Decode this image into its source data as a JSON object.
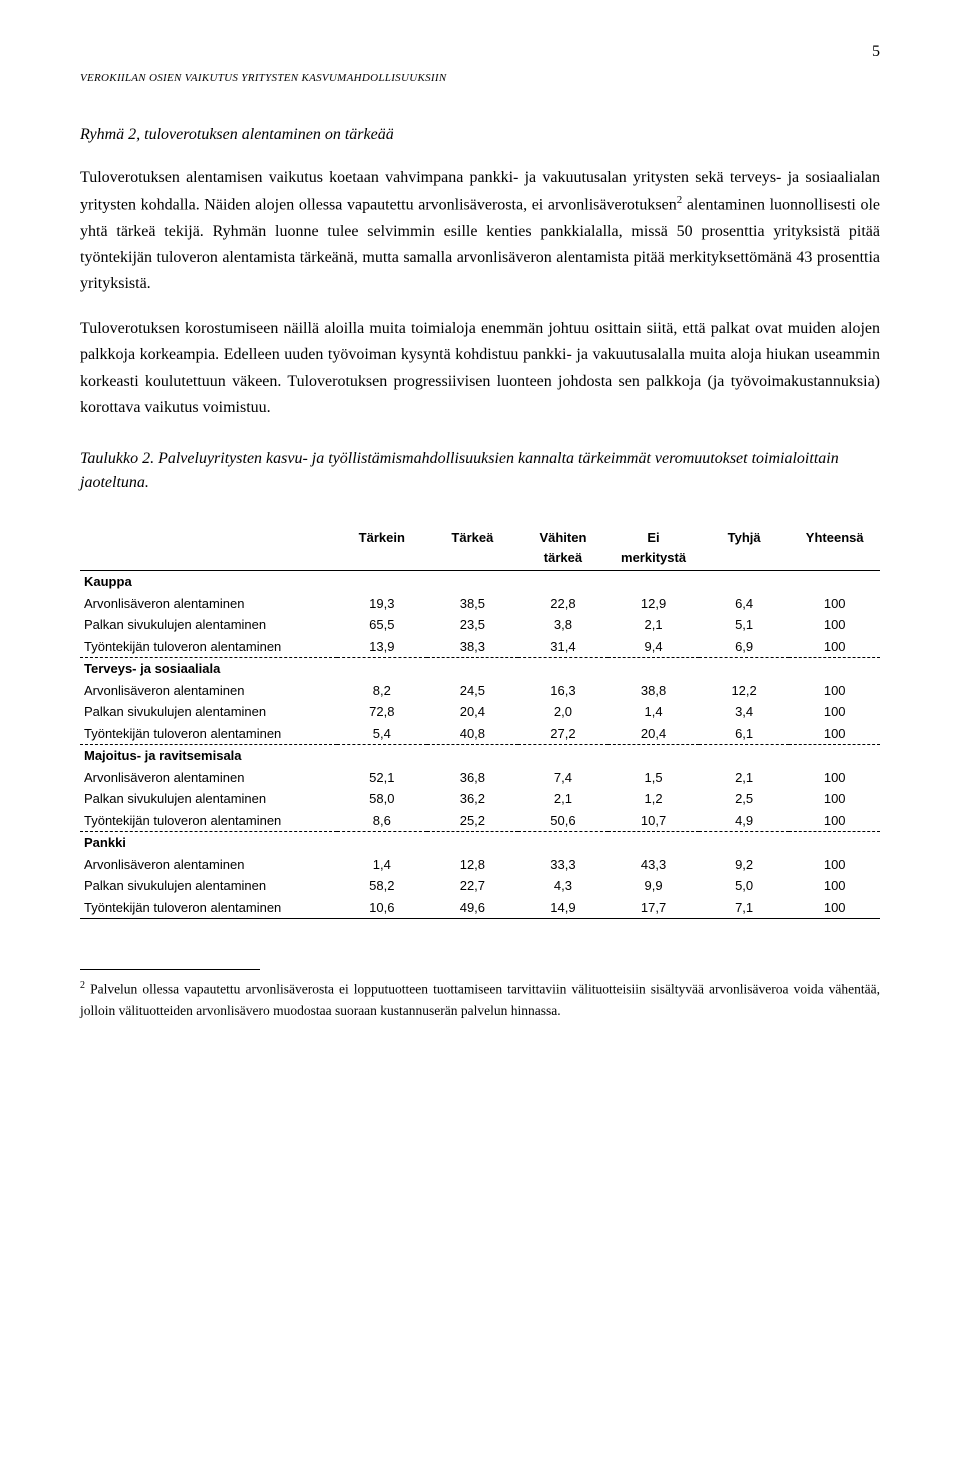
{
  "page_number": "5",
  "running_header": "VEROKIILAN OSIEN VAIKUTUS YRITYSTEN KASVUMAHDOLLISUUKSIIN",
  "section_heading": "Ryhmä 2, tuloverotuksen alentaminen on tärkeää",
  "para1_a": "Tuloverotuksen alentamisen vaikutus koetaan vahvimpana pankki- ja vakuutusalan yritysten sekä terveys- ja sosiaalialan yritysten kohdalla. Näiden alojen ollessa vapautettu arvonlisäverosta, ei arvonlisäverotuksen",
  "para1_sup": "2",
  "para1_b": " alentaminen luonnollisesti ole yhtä tärkeä tekijä. Ryhmän luonne tulee selvimmin esille kenties pankkialalla, missä 50 prosenttia yrityksistä pitää työntekijän tuloveron alentamista tärkeänä, mutta samalla arvonlisäveron alentamista pitää merkityksettömänä 43 prosenttia yrityksistä.",
  "para2": "Tuloverotuksen korostumiseen näillä aloilla muita toimialoja enemmän johtuu osittain siitä, että palkat ovat muiden alojen palkkoja korkeampia. Edelleen uuden työvoiman kysyntä kohdistuu pankki- ja vakuutusalalla muita aloja hiukan useammin korkeasti koulutettuun väkeen. Tuloverotuksen progressiivisen luonteen johdosta sen palkkoja (ja työvoimakustannuksia) korottava vaikutus voimistuu.",
  "table_caption": "Taulukko 2. Palveluyritysten kasvu- ja työllistämismahdollisuuksien kannalta tärkeimmät veromuutokset toimialoittain jaoteltuna.",
  "columns": [
    {
      "l1": "",
      "l2": ""
    },
    {
      "l1": "Tärkein",
      "l2": ""
    },
    {
      "l1": "Tärkeä",
      "l2": ""
    },
    {
      "l1": "Vähiten",
      "l2": "tärkeä"
    },
    {
      "l1": "Ei",
      "l2": "merkitystä"
    },
    {
      "l1": "Tyhjä",
      "l2": ""
    },
    {
      "l1": "Yhteensä",
      "l2": ""
    }
  ],
  "groups": [
    {
      "name": "Kauppa",
      "rows": [
        {
          "label": "Arvonlisäveron alentaminen",
          "v": [
            "19,3",
            "38,5",
            "22,8",
            "12,9",
            "6,4",
            "100"
          ]
        },
        {
          "label": "Palkan sivukulujen alentaminen",
          "v": [
            "65,5",
            "23,5",
            "3,8",
            "2,1",
            "5,1",
            "100"
          ]
        },
        {
          "label": "Työntekijän tuloveron alentaminen",
          "v": [
            "13,9",
            "38,3",
            "31,4",
            "9,4",
            "6,9",
            "100"
          ]
        }
      ]
    },
    {
      "name": "Terveys- ja sosiaaliala",
      "rows": [
        {
          "label": "Arvonlisäveron alentaminen",
          "v": [
            "8,2",
            "24,5",
            "16,3",
            "38,8",
            "12,2",
            "100"
          ]
        },
        {
          "label": "Palkan sivukulujen alentaminen",
          "v": [
            "72,8",
            "20,4",
            "2,0",
            "1,4",
            "3,4",
            "100"
          ]
        },
        {
          "label": "Työntekijän tuloveron alentaminen",
          "v": [
            "5,4",
            "40,8",
            "27,2",
            "20,4",
            "6,1",
            "100"
          ]
        }
      ]
    },
    {
      "name": "Majoitus- ja ravitsemisala",
      "rows": [
        {
          "label": "Arvonlisäveron alentaminen",
          "v": [
            "52,1",
            "36,8",
            "7,4",
            "1,5",
            "2,1",
            "100"
          ]
        },
        {
          "label": "Palkan sivukulujen alentaminen",
          "v": [
            "58,0",
            "36,2",
            "2,1",
            "1,2",
            "2,5",
            "100"
          ]
        },
        {
          "label": "Työntekijän tuloveron alentaminen",
          "v": [
            "8,6",
            "25,2",
            "50,6",
            "10,7",
            "4,9",
            "100"
          ]
        }
      ]
    },
    {
      "name": "Pankki",
      "rows": [
        {
          "label": "Arvonlisäveron alentaminen",
          "v": [
            "1,4",
            "12,8",
            "33,3",
            "43,3",
            "9,2",
            "100"
          ]
        },
        {
          "label": "Palkan sivukulujen alentaminen",
          "v": [
            "58,2",
            "22,7",
            "4,3",
            "9,9",
            "5,0",
            "100"
          ]
        },
        {
          "label": "Työntekijän tuloveron alentaminen",
          "v": [
            "10,6",
            "49,6",
            "14,9",
            "17,7",
            "7,1",
            "100"
          ]
        }
      ]
    }
  ],
  "footnote_sup": "2",
  "footnote": " Palvelun ollessa vapautettu arvonlisäverosta ei lopputuotteen tuottamiseen tarvittaviin välituotteisiin sisältyvää arvonlisäveroa voida vähentää, jolloin välituotteiden arvonlisävero muodostaa suoraan kustannuserän palvelun hinnassa."
}
